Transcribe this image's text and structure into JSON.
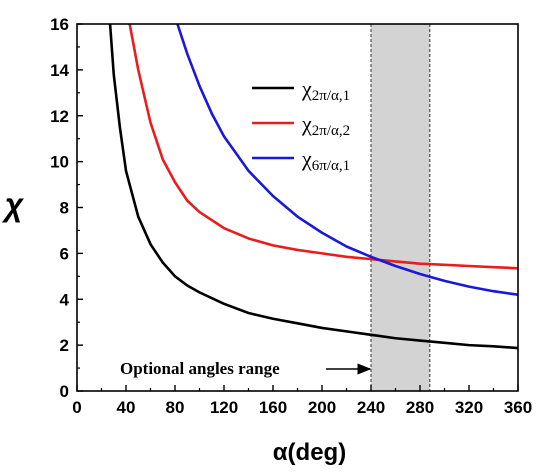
{
  "chart_data": {
    "type": "line",
    "xlabel": "α(deg)",
    "ylabel": "χ",
    "xlim": [
      0,
      360
    ],
    "ylim": [
      0,
      16
    ],
    "xticks": [
      0,
      40,
      80,
      120,
      160,
      200,
      240,
      280,
      320,
      360
    ],
    "yticks": [
      0,
      2,
      4,
      6,
      8,
      10,
      12,
      14,
      16
    ],
    "x_tick_labels": [
      "0",
      "40",
      "80",
      "120",
      "160",
      "200",
      "240",
      "280",
      "320",
      "360"
    ],
    "y_tick_labels": [
      "0",
      "2",
      "4",
      "6",
      "8",
      "10",
      "12",
      "14",
      "16"
    ],
    "grid": false,
    "legend_position": "top-right",
    "series": [
      {
        "name": "χ2π/α,1",
        "color": "#000000",
        "points": [
          [
            27,
            16.0
          ],
          [
            30,
            13.8
          ],
          [
            35,
            11.5
          ],
          [
            40,
            9.6
          ],
          [
            50,
            7.6
          ],
          [
            60,
            6.4
          ],
          [
            70,
            5.6
          ],
          [
            80,
            5.0
          ],
          [
            90,
            4.6
          ],
          [
            100,
            4.3
          ],
          [
            120,
            3.8
          ],
          [
            140,
            3.4
          ],
          [
            160,
            3.15
          ],
          [
            180,
            2.95
          ],
          [
            200,
            2.75
          ],
          [
            220,
            2.6
          ],
          [
            240,
            2.45
          ],
          [
            260,
            2.3
          ],
          [
            280,
            2.2
          ],
          [
            300,
            2.1
          ],
          [
            320,
            2.0
          ],
          [
            340,
            1.95
          ],
          [
            360,
            1.87
          ]
        ]
      },
      {
        "name": "χ2π/α,2",
        "color": "#e81e1e",
        "points": [
          [
            43,
            16.0
          ],
          [
            50,
            14.0
          ],
          [
            60,
            11.7
          ],
          [
            70,
            10.1
          ],
          [
            80,
            9.1
          ],
          [
            90,
            8.3
          ],
          [
            100,
            7.8
          ],
          [
            120,
            7.1
          ],
          [
            140,
            6.65
          ],
          [
            160,
            6.35
          ],
          [
            180,
            6.15
          ],
          [
            200,
            6.0
          ],
          [
            220,
            5.85
          ],
          [
            240,
            5.75
          ],
          [
            260,
            5.65
          ],
          [
            280,
            5.55
          ],
          [
            300,
            5.5
          ],
          [
            320,
            5.45
          ],
          [
            340,
            5.4
          ],
          [
            360,
            5.35
          ]
        ]
      },
      {
        "name": "χ6π/α,1",
        "color": "#1a1ad6",
        "points": [
          [
            82,
            16.0
          ],
          [
            90,
            14.7
          ],
          [
            100,
            13.3
          ],
          [
            110,
            12.1
          ],
          [
            120,
            11.1
          ],
          [
            140,
            9.6
          ],
          [
            160,
            8.5
          ],
          [
            180,
            7.6
          ],
          [
            200,
            6.9
          ],
          [
            220,
            6.3
          ],
          [
            240,
            5.85
          ],
          [
            260,
            5.45
          ],
          [
            280,
            5.1
          ],
          [
            300,
            4.8
          ],
          [
            320,
            4.55
          ],
          [
            340,
            4.35
          ],
          [
            360,
            4.2
          ]
        ]
      }
    ],
    "shaded_band": {
      "x_start": 240,
      "x_end": 288,
      "color": "#d3d3d3"
    },
    "annotation": {
      "text": "Optional angles range",
      "arrow_to_x": 240
    }
  }
}
